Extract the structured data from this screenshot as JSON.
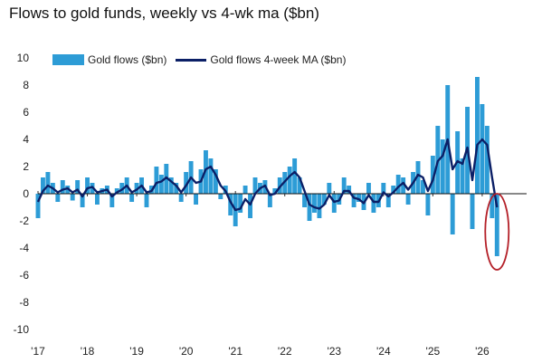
{
  "chart_data": {
    "type": "bar",
    "title": "Flows to gold funds, weekly vs 4-wk ma ($bn)",
    "xlabel": "",
    "ylabel": "",
    "ylim": [
      -10,
      10
    ],
    "yticks": [
      "10",
      "8",
      "6",
      "4",
      "2",
      "0",
      "-2",
      "-4",
      "-6",
      "-8",
      "-10"
    ],
    "xlim": [
      2017.0,
      2026.9
    ],
    "xticks": [
      {
        "label": "'17",
        "x": 2017
      },
      {
        "label": "'18",
        "x": 2018
      },
      {
        "label": "'19",
        "x": 2019
      },
      {
        "label": "'20",
        "x": 2020
      },
      {
        "label": "'21",
        "x": 2021
      },
      {
        "label": "'22",
        "x": 2022
      },
      {
        "label": "'23",
        "x": 2023
      },
      {
        "label": "'24",
        "x": 2024
      },
      {
        "label": "'25",
        "x": 2025
      },
      {
        "label": "'26",
        "x": 2026
      }
    ],
    "legend_position": "top-left",
    "grid": false,
    "colors": {
      "bars": "#2d9cd6",
      "ma": "#0b1f66",
      "highlight": "#b42028",
      "zero": "#111111"
    },
    "series": [
      {
        "name": "Gold flows ($bn)",
        "type": "bar",
        "x": [
          2017.0,
          2017.1,
          2017.2,
          2017.3,
          2017.4,
          2017.5,
          2017.6,
          2017.7,
          2017.8,
          2017.9,
          2018.0,
          2018.1,
          2018.2,
          2018.3,
          2018.4,
          2018.5,
          2018.6,
          2018.7,
          2018.8,
          2018.9,
          2019.0,
          2019.1,
          2019.2,
          2019.3,
          2019.4,
          2019.5,
          2019.6,
          2019.7,
          2019.8,
          2019.9,
          2020.0,
          2020.1,
          2020.2,
          2020.3,
          2020.4,
          2020.5,
          2020.6,
          2020.7,
          2020.8,
          2020.9,
          2021.0,
          2021.1,
          2021.2,
          2021.3,
          2021.4,
          2021.5,
          2021.6,
          2021.7,
          2021.8,
          2021.9,
          2022.0,
          2022.1,
          2022.2,
          2022.3,
          2022.4,
          2022.5,
          2022.6,
          2022.7,
          2022.8,
          2022.9,
          2023.0,
          2023.1,
          2023.2,
          2023.3,
          2023.4,
          2023.5,
          2023.6,
          2023.7,
          2023.8,
          2023.9,
          2024.0,
          2024.1,
          2024.2,
          2024.3,
          2024.4,
          2024.5,
          2024.6,
          2024.7,
          2024.8,
          2024.9,
          2025.0,
          2025.1,
          2025.2,
          2025.3,
          2025.4,
          2025.5,
          2025.6,
          2025.7,
          2025.8,
          2025.9,
          2026.0,
          2026.1,
          2026.2,
          2026.3
        ],
        "values": [
          -1.8,
          1.2,
          1.6,
          0.8,
          -0.6,
          1.0,
          0.6,
          -0.5,
          1.0,
          -1.0,
          1.2,
          0.8,
          -0.8,
          0.4,
          0.6,
          -1.0,
          0.4,
          0.8,
          1.2,
          -0.6,
          0.8,
          1.2,
          -1.0,
          0.6,
          2.0,
          1.4,
          2.2,
          1.2,
          0.8,
          -0.6,
          1.6,
          2.4,
          -0.8,
          1.8,
          3.2,
          2.6,
          1.8,
          -0.4,
          0.6,
          -1.6,
          -2.4,
          -1.4,
          0.6,
          -1.8,
          1.2,
          0.8,
          1.0,
          -1.0,
          0.4,
          1.2,
          1.6,
          2.0,
          2.6,
          1.2,
          -1.0,
          -2.0,
          -1.4,
          -1.8,
          -0.8,
          0.8,
          -1.4,
          -0.8,
          1.2,
          0.6,
          -1.0,
          -0.6,
          -1.2,
          0.8,
          -1.4,
          -1.0,
          0.8,
          -1.0,
          0.6,
          1.4,
          1.2,
          -0.8,
          1.6,
          2.4,
          1.0,
          -1.6,
          2.8,
          5.0,
          4.0,
          8.0,
          -3.0,
          4.6,
          2.6,
          6.4,
          -2.6,
          8.6,
          6.6,
          5.0,
          -1.8,
          -4.6
        ]
      },
      {
        "name": "Gold flows 4-week MA ($bn)",
        "type": "line",
        "x": [
          2017.0,
          2017.1,
          2017.2,
          2017.3,
          2017.4,
          2017.5,
          2017.6,
          2017.7,
          2017.8,
          2017.9,
          2018.0,
          2018.1,
          2018.2,
          2018.3,
          2018.4,
          2018.5,
          2018.6,
          2018.7,
          2018.8,
          2018.9,
          2019.0,
          2019.1,
          2019.2,
          2019.3,
          2019.4,
          2019.5,
          2019.6,
          2019.7,
          2019.8,
          2019.9,
          2020.0,
          2020.1,
          2020.2,
          2020.3,
          2020.4,
          2020.5,
          2020.6,
          2020.7,
          2020.8,
          2020.9,
          2021.0,
          2021.1,
          2021.2,
          2021.3,
          2021.4,
          2021.5,
          2021.6,
          2021.7,
          2021.8,
          2021.9,
          2022.0,
          2022.1,
          2022.2,
          2022.3,
          2022.4,
          2022.5,
          2022.6,
          2022.7,
          2022.8,
          2022.9,
          2023.0,
          2023.1,
          2023.2,
          2023.3,
          2023.4,
          2023.5,
          2023.6,
          2023.7,
          2023.8,
          2023.9,
          2024.0,
          2024.1,
          2024.2,
          2024.3,
          2024.4,
          2024.5,
          2024.6,
          2024.7,
          2024.8,
          2024.9,
          2025.0,
          2025.1,
          2025.2,
          2025.3,
          2025.4,
          2025.5,
          2025.6,
          2025.7,
          2025.8,
          2025.9,
          2026.0,
          2026.1,
          2026.2,
          2026.3
        ],
        "values": [
          -0.6,
          0.2,
          0.6,
          0.4,
          0.1,
          0.3,
          0.4,
          0.1,
          0.3,
          -0.2,
          0.4,
          0.5,
          0.1,
          0.2,
          0.3,
          -0.2,
          0.1,
          0.3,
          0.6,
          0.1,
          0.3,
          0.6,
          0.1,
          0.2,
          0.8,
          0.9,
          1.2,
          0.9,
          0.6,
          0.1,
          0.6,
          1.2,
          0.8,
          0.9,
          1.8,
          2.0,
          1.4,
          0.6,
          0.2,
          -0.6,
          -1.2,
          -1.1,
          -0.4,
          -0.8,
          0.0,
          0.4,
          0.6,
          -0.1,
          0.0,
          0.5,
          0.9,
          1.3,
          1.6,
          1.2,
          0.2,
          -0.8,
          -1.0,
          -1.1,
          -0.8,
          -0.1,
          -0.6,
          -0.5,
          0.2,
          0.2,
          -0.3,
          -0.4,
          -0.7,
          -0.1,
          -0.6,
          -0.6,
          0.1,
          -0.2,
          0.1,
          0.5,
          0.8,
          0.3,
          0.8,
          1.4,
          1.2,
          0.2,
          1.0,
          2.4,
          2.8,
          4.0,
          1.8,
          2.4,
          2.2,
          3.4,
          1.0,
          3.6,
          4.0,
          3.6,
          1.2,
          -1.0
        ]
      }
    ],
    "annotation": {
      "type": "ellipse",
      "label": "",
      "x": 2026.3,
      "y": -2.8
    }
  }
}
